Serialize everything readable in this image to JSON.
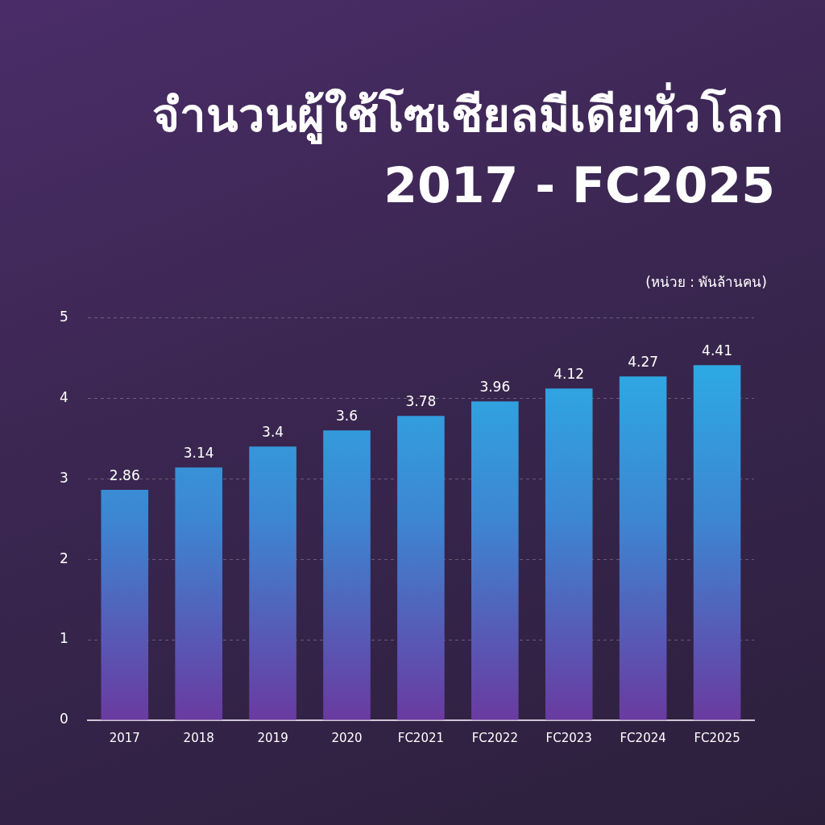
{
  "chart_data": {
    "type": "bar",
    "title": "จำนวนผู้ใช้โซเชียลมีเดียทั่วโลก",
    "subtitle": "2017 - FC2025",
    "ylabel": "(หน่วย : พันล้านคน)",
    "categories": [
      "2017",
      "2018",
      "2019",
      "2020",
      "FC2021",
      "FC2022",
      "FC2023",
      "FC2024",
      "FC2025"
    ],
    "values": [
      2.86,
      3.14,
      3.4,
      3.6,
      3.78,
      3.96,
      4.12,
      4.27,
      4.41
    ],
    "color": "#3d86d2",
    "ylim": [
      0,
      5
    ],
    "yticks": [
      0,
      1,
      2,
      3,
      4,
      5
    ],
    "grid": "y",
    "data_labels": true
  }
}
